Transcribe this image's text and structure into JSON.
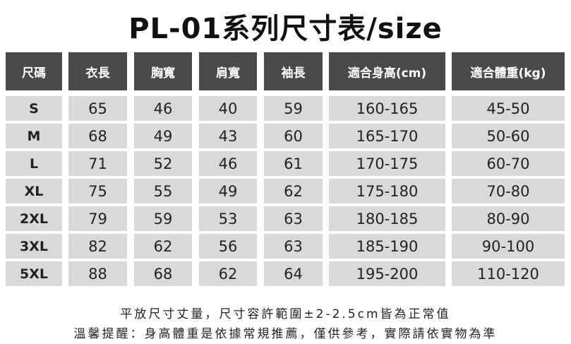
{
  "header": {
    "title": "PL-01系列尺寸表/size"
  },
  "table": {
    "columns": [
      "尺碼",
      "衣長",
      "胸寬",
      "肩寬",
      "袖長",
      "適合身高(cm)",
      "適合體重(kg)"
    ],
    "rows": [
      [
        "S",
        "65",
        "46",
        "40",
        "59",
        "160-165",
        "45-50"
      ],
      [
        "M",
        "68",
        "49",
        "43",
        "60",
        "165-170",
        "50-60"
      ],
      [
        "L",
        "71",
        "52",
        "46",
        "61",
        "170-175",
        "60-70"
      ],
      [
        "XL",
        "75",
        "55",
        "49",
        "62",
        "175-180",
        "70-80"
      ],
      [
        "2XL",
        "79",
        "59",
        "53",
        "63",
        "180-185",
        "80-90"
      ],
      [
        "3XL",
        "82",
        "62",
        "56",
        "63",
        "185-190",
        "90-100"
      ],
      [
        "5XL",
        "88",
        "68",
        "62",
        "64",
        "195-200",
        "110-120"
      ]
    ]
  },
  "notes": [
    "平放尺寸丈量，尺寸容許範圍±2-2.5cm皆為正常值",
    "溫馨提醒：身高體重是依據常規推薦，僅供參考，實際請依實物為準"
  ]
}
